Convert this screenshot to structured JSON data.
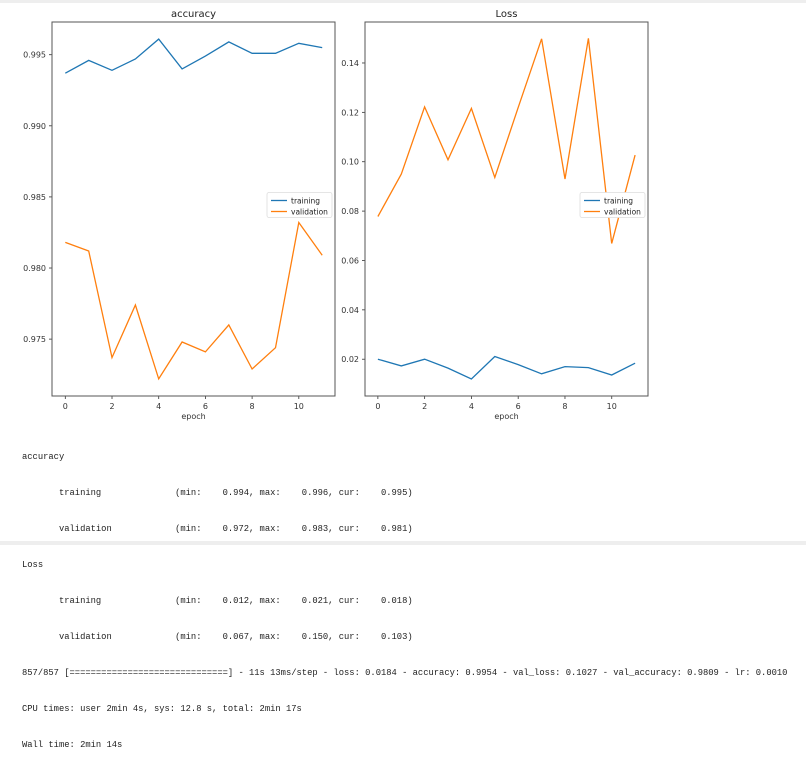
{
  "chart_data": [
    {
      "type": "line",
      "title": "accuracy",
      "xlabel": "epoch",
      "ylabel": "",
      "x": [
        0,
        1,
        2,
        3,
        4,
        5,
        6,
        7,
        8,
        9,
        10,
        11
      ],
      "xlim": [
        -0.57,
        11.55
      ],
      "ylim": [
        0.971,
        0.9973
      ],
      "xticks": [
        0,
        2,
        4,
        6,
        8,
        10
      ],
      "yticks": [
        0.975,
        0.98,
        0.985,
        0.99,
        0.995
      ],
      "ytick_labels": [
        "0.975",
        "0.980",
        "0.985",
        "0.990",
        "0.995"
      ],
      "grid": false,
      "legend": "center-right",
      "series": [
        {
          "name": "training",
          "color": "#1f77b4",
          "values": [
            0.9937,
            0.9946,
            0.9939,
            0.9947,
            0.9961,
            0.994,
            0.9949,
            0.9959,
            0.9951,
            0.9951,
            0.9958,
            0.9955
          ]
        },
        {
          "name": "validation",
          "color": "#ff7f0e",
          "values": [
            0.9818,
            0.9812,
            0.9737,
            0.9774,
            0.9722,
            0.9748,
            0.9741,
            0.976,
            0.9729,
            0.9744,
            0.9832,
            0.9809
          ]
        }
      ]
    },
    {
      "type": "line",
      "title": "Loss",
      "xlabel": "epoch",
      "ylabel": "",
      "x": [
        0,
        1,
        2,
        3,
        4,
        5,
        6,
        7,
        8,
        9,
        10,
        11
      ],
      "xlim": [
        -0.55,
        11.55
      ],
      "ylim": [
        0.0051,
        0.1566
      ],
      "xticks": [
        0,
        2,
        4,
        6,
        8,
        10
      ],
      "yticks": [
        0.02,
        0.04,
        0.06,
        0.08,
        0.1,
        0.12,
        0.14
      ],
      "ytick_labels": [
        "0.02",
        "0.04",
        "0.06",
        "0.08",
        "0.10",
        "0.12",
        "0.14"
      ],
      "grid": false,
      "legend": "center-right",
      "series": [
        {
          "name": "training",
          "color": "#1f77b4",
          "values": [
            0.02,
            0.0173,
            0.02,
            0.0164,
            0.012,
            0.0211,
            0.0178,
            0.0141,
            0.017,
            0.0166,
            0.0136,
            0.0184
          ]
        },
        {
          "name": "validation",
          "color": "#ff7f0e",
          "values": [
            0.0778,
            0.095,
            0.1222,
            0.1008,
            0.1216,
            0.0936,
            0.122,
            0.1498,
            0.093,
            0.15,
            0.0669,
            0.1027
          ]
        }
      ]
    }
  ],
  "output": {
    "lines": [
      "accuracy",
      "\ttraining           \t (min:    0.994, max:    0.996, cur:    0.995)",
      "\tvalidation         \t (min:    0.972, max:    0.983, cur:    0.981)",
      "Loss",
      "\ttraining           \t (min:    0.012, max:    0.021, cur:    0.018)",
      "\tvalidation         \t (min:    0.067, max:    0.150, cur:    0.103)",
      "857/857 [==============================] - 11s 13ms/step - loss: 0.0184 - accuracy: 0.9954 - val_loss: 0.1027 - val_accuracy: 0.9809 - lr: 0.0010",
      "CPU times: user 2min 4s, sys: 12.8 s, total: 2min 17s",
      "Wall time: 2min 14s"
    ]
  }
}
